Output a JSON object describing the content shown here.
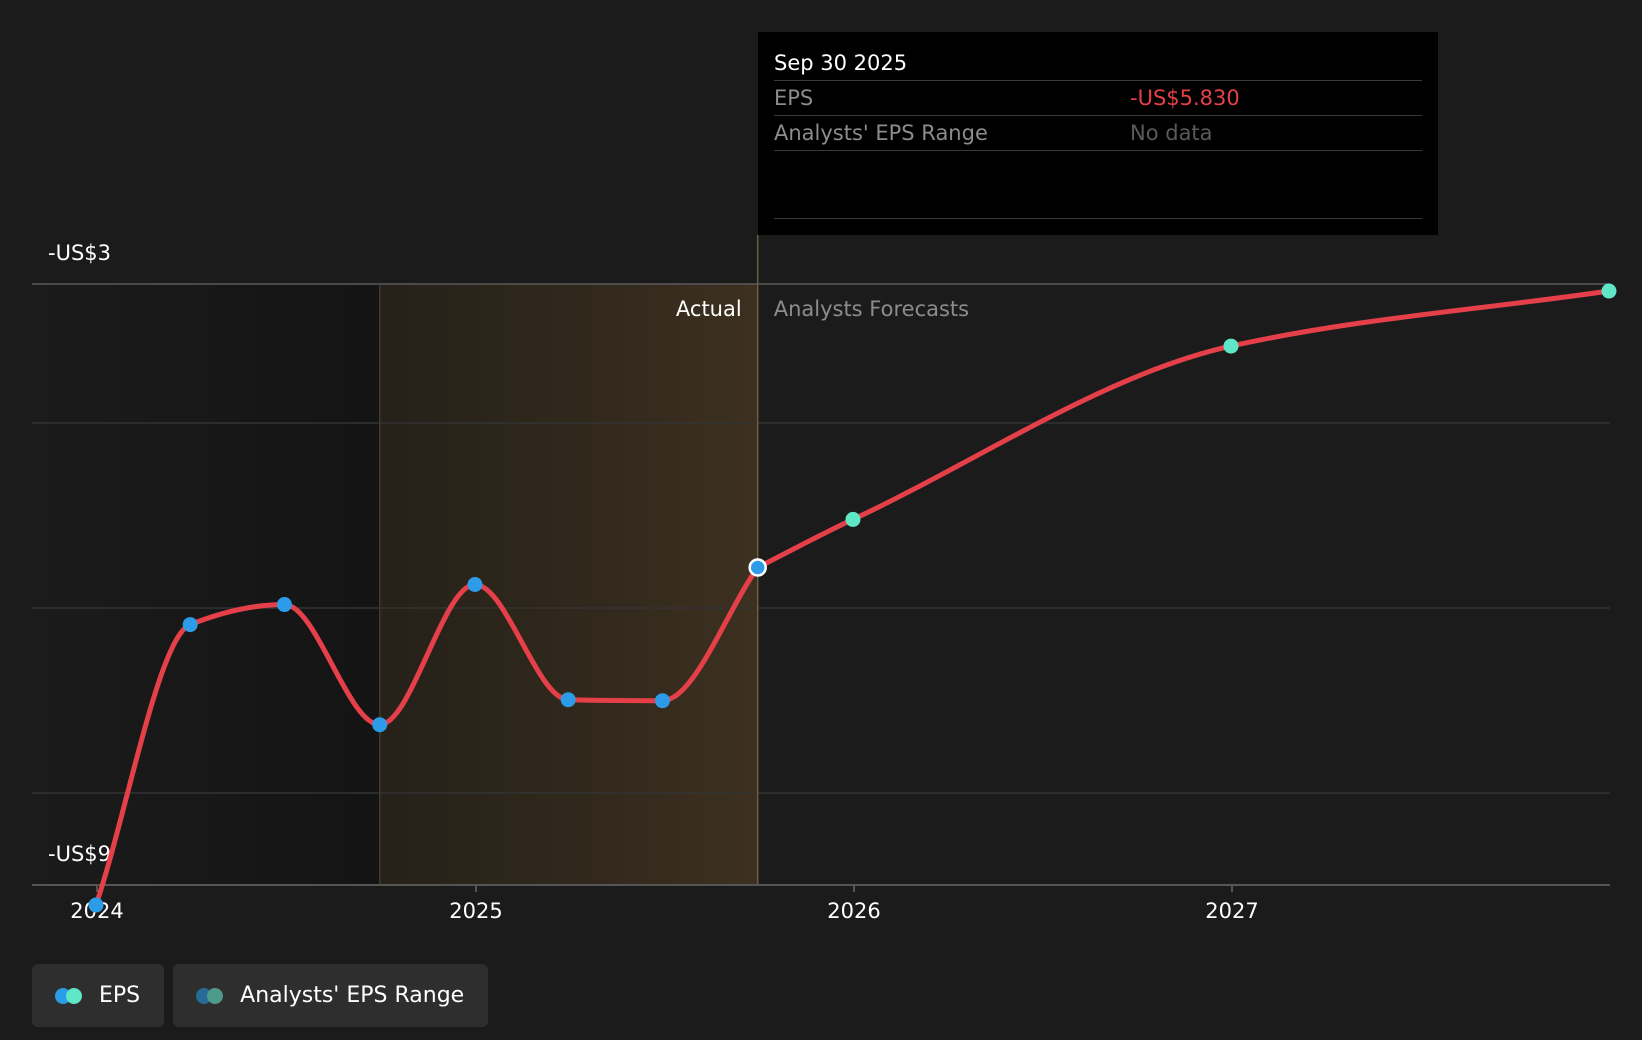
{
  "chart_data": {
    "type": "line",
    "title": "",
    "xlabel": "",
    "ylabel": "",
    "x_ticks": [
      "2024",
      "2025",
      "2026",
      "2027"
    ],
    "y_ticks": [
      "-US$3",
      "-US$9"
    ],
    "ylim": [
      -9.2,
      -2.9
    ],
    "grid": true,
    "regions": {
      "actual_label": "Actual",
      "forecast_label": "Analysts Forecasts"
    },
    "series": [
      {
        "name": "EPS",
        "actual": [
          {
            "date": "2023-12-31",
            "value": -9.2
          },
          {
            "date": "2024-03-31",
            "value": -6.4
          },
          {
            "date": "2024-06-30",
            "value": -6.2
          },
          {
            "date": "2024-09-30",
            "value": -7.4
          },
          {
            "date": "2024-12-31",
            "value": -6.0
          },
          {
            "date": "2025-03-31",
            "value": -7.15
          },
          {
            "date": "2025-06-30",
            "value": -7.16
          },
          {
            "date": "2025-09-30",
            "value": -5.83
          }
        ],
        "forecast": [
          {
            "date": "2025-09-30",
            "value": -5.83
          },
          {
            "date": "2025-12-31",
            "value": -5.35
          },
          {
            "date": "2026-12-31",
            "value": -3.62
          },
          {
            "date": "2027-12-31",
            "value": -3.07
          }
        ]
      }
    ],
    "highlight_point": {
      "date": "2025-09-30",
      "value": -5.83
    }
  },
  "tooltip": {
    "date": "Sep 30 2025",
    "eps_label": "EPS",
    "eps_value": "-US$5.830",
    "range_label": "Analysts' EPS Range",
    "range_value": "No data"
  },
  "legend": [
    {
      "label": "EPS",
      "colors": [
        "#2d9ce8",
        "#5ee6c6"
      ]
    },
    {
      "label": "Analysts' EPS Range",
      "colors": [
        "#276b96",
        "#4e9a8a"
      ]
    }
  ],
  "colors": {
    "line": "#e5404a",
    "actual_point": "#2d9ce8",
    "forecast_point": "#5ee6c6",
    "background": "#1b1b1b",
    "tooltip_bg": "#000000"
  }
}
